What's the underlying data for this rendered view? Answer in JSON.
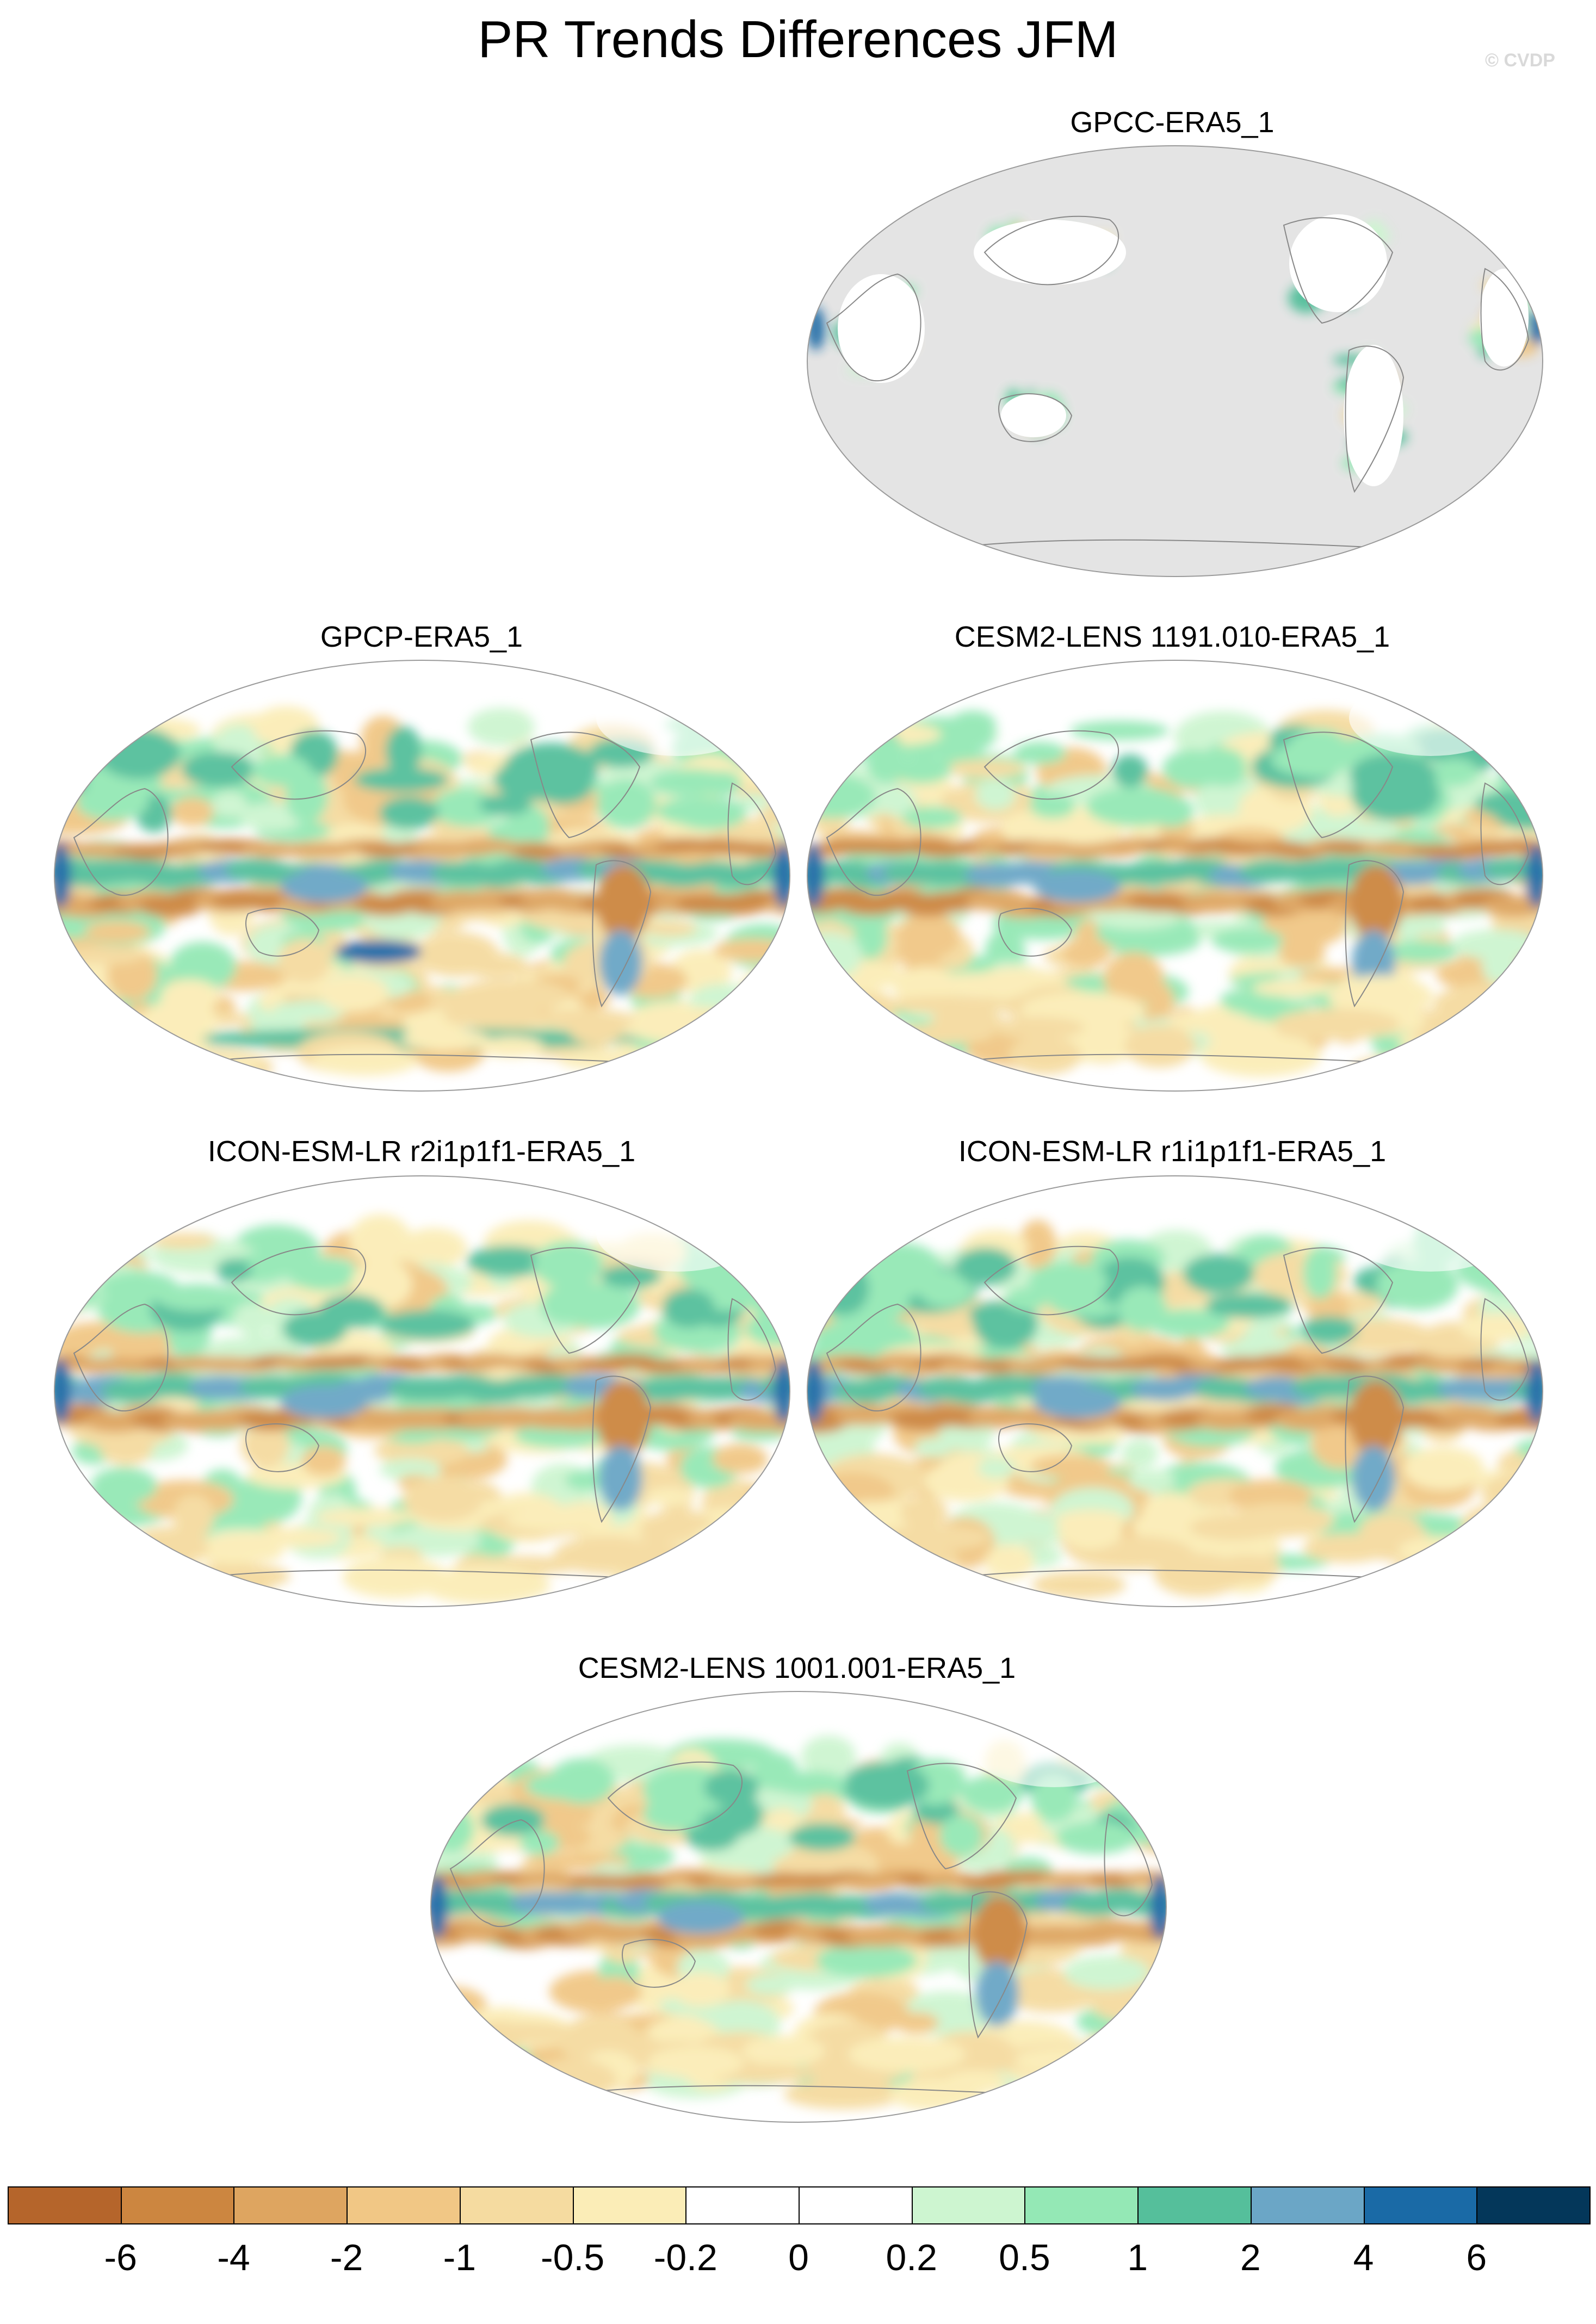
{
  "title": "PR Trends Differences JFM",
  "watermark": "© CVDP",
  "panels": [
    {
      "title": "GPCC-ERA5_1",
      "land_only": true
    },
    {
      "title": "GPCP-ERA5_1",
      "land_only": false
    },
    {
      "title": "CESM2-LENS 1191.010-ERA5_1",
      "land_only": false
    },
    {
      "title": "ICON-ESM-LR r2i1p1f1-ERA5_1",
      "land_only": false
    },
    {
      "title": "ICON-ESM-LR r1i1p1f1-ERA5_1",
      "land_only": false
    },
    {
      "title": "CESM2-LENS 1001.001-ERA5_1",
      "land_only": false
    }
  ],
  "colorbar": {
    "colors": [
      "#b5652b",
      "#cc8640",
      "#dea560",
      "#f1c785",
      "#f5dba0",
      "#fbedb7",
      "#ffffff",
      "#ffffff",
      "#cdf5d0",
      "#94e8b5",
      "#55bf9b",
      "#6ba6c6",
      "#1a6aa6",
      "#04375a"
    ],
    "labels": [
      "-6",
      "-4",
      "-2",
      "-1",
      "-0.5",
      "-0.2",
      "0",
      "0.2",
      "0.5",
      "1",
      "2",
      "4",
      "6"
    ]
  },
  "ocean_missing_color": "#e4e4e4",
  "coast_color": "#888888"
}
